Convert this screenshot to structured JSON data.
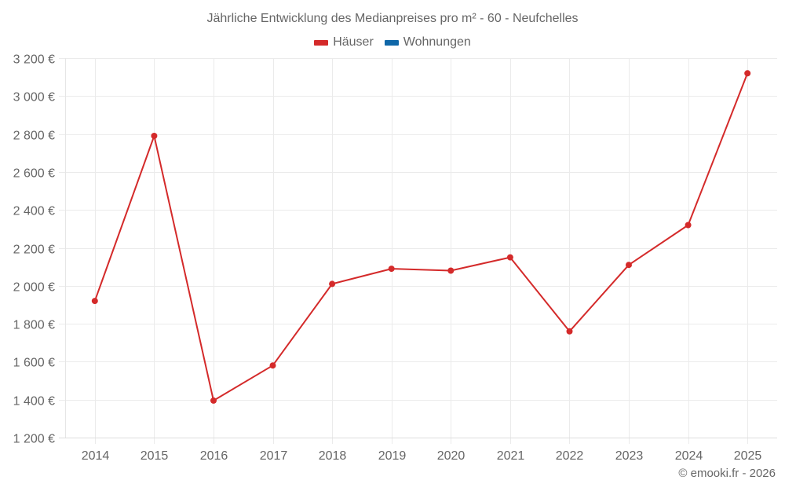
{
  "chart_data": {
    "type": "line",
    "title": "Jährliche Entwicklung des Medianpreises pro m² - 60 - Neufchelles",
    "xlabel": "",
    "ylabel": "",
    "categories": [
      "2014",
      "2015",
      "2016",
      "2017",
      "2018",
      "2019",
      "2020",
      "2021",
      "2022",
      "2023",
      "2024",
      "2025"
    ],
    "series": [
      {
        "name": "Häuser",
        "color": "#d42a2a",
        "values": [
          1920,
          2790,
          1395,
          1580,
          2010,
          2090,
          2080,
          2150,
          1760,
          2110,
          2320,
          3120
        ]
      },
      {
        "name": "Wohnungen",
        "color": "#0f67a8",
        "values": []
      }
    ],
    "ylim": [
      1200,
      3200
    ],
    "yticks": [
      1200,
      1400,
      1600,
      1800,
      2000,
      2200,
      2400,
      2600,
      2800,
      3000,
      3200
    ],
    "ytick_labels": [
      "1 200 €",
      "1 400 €",
      "1 600 €",
      "1 800 €",
      "2 000 €",
      "2 200 €",
      "2 400 €",
      "2 600 €",
      "2 800 €",
      "3 000 €",
      "3 200 €"
    ],
    "grid": true,
    "legend_position": "top"
  },
  "header": {
    "title": "Jährliche Entwicklung des Medianpreises pro m² - 60 - Neufchelles"
  },
  "legend": [
    {
      "label": "Häuser",
      "color": "#d42a2a"
    },
    {
      "label": "Wohnungen",
      "color": "#0f67a8"
    }
  ],
  "footer": {
    "credit": "© emooki.fr - 2026"
  }
}
